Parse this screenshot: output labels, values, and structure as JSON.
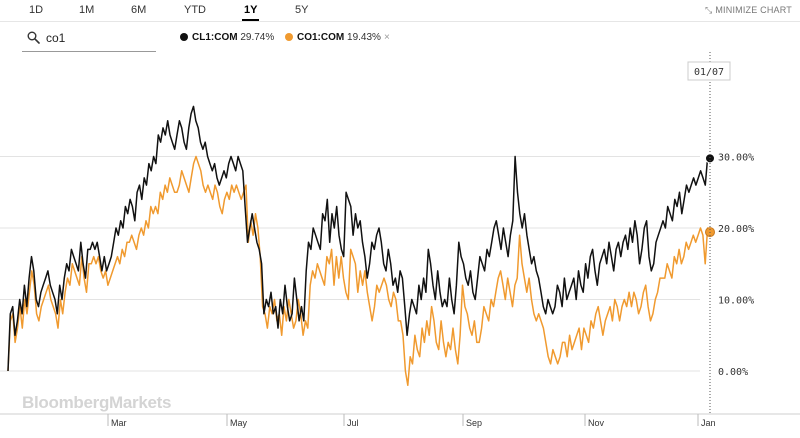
{
  "ranges": [
    {
      "label": "1D",
      "active": false
    },
    {
      "label": "1M",
      "active": false
    },
    {
      "label": "6M",
      "active": false
    },
    {
      "label": "YTD",
      "active": false
    },
    {
      "label": "1Y",
      "active": true
    },
    {
      "label": "5Y",
      "active": false
    }
  ],
  "minimize_label": "MINIMIZE CHART",
  "minimize_icon": "collapse-arrows-icon",
  "search": {
    "value": "co1",
    "placeholder": "",
    "icon": "search-icon"
  },
  "legend": [
    {
      "ticker": "CL1:COM",
      "change": "29.74%",
      "color": "#111111",
      "removable": false
    },
    {
      "ticker": "CO1:COM",
      "change": "19.43%",
      "color": "#f09a2f",
      "removable": true,
      "remove_icon": "×"
    }
  ],
  "watermark": "BloombergMarkets",
  "current_date_label": "01/07",
  "chart_data": {
    "type": "line",
    "x_labels": [
      "Mar",
      "May",
      "Jul",
      "Sep",
      "Nov",
      "Jan"
    ],
    "y_ticks": [
      "0.00%",
      "10.00%",
      "20.00%",
      "30.00%"
    ],
    "ylim": [
      -6,
      44
    ],
    "y_axis_position": "right",
    "grid": "horizontal",
    "series": [
      {
        "name": "CL1:COM",
        "color": "#111111",
        "end_value": 29.74,
        "values": [
          0,
          8,
          9,
          5,
          7,
          10,
          8,
          12,
          9,
          13,
          16,
          14,
          10,
          9,
          11,
          12,
          13,
          14,
          12,
          11,
          10,
          8,
          12,
          10,
          13,
          15,
          14,
          17,
          16,
          15,
          14,
          18,
          15,
          13,
          17,
          17,
          18,
          17,
          18,
          16,
          14,
          16,
          14,
          15,
          16,
          18,
          20,
          19,
          21,
          20,
          23,
          22,
          24,
          23,
          21,
          25,
          26,
          24,
          27,
          26,
          29,
          28,
          30,
          29,
          33,
          32,
          34,
          33,
          35,
          33,
          32,
          31,
          33,
          35,
          34,
          32,
          31,
          34,
          36,
          37,
          35,
          34,
          32,
          31,
          32,
          30,
          29,
          28,
          29,
          27,
          26,
          27,
          28,
          27,
          29,
          30,
          29,
          28,
          30,
          29,
          28,
          23,
          18,
          20,
          22,
          20,
          18,
          17,
          15,
          8,
          10,
          9,
          11,
          8,
          9,
          6,
          10,
          8,
          12,
          9,
          7,
          8,
          13,
          10,
          7,
          9,
          7,
          14,
          18,
          17,
          20,
          19,
          18,
          17,
          22,
          21,
          24,
          18,
          22,
          20,
          23,
          19,
          17,
          16,
          25,
          24,
          23,
          19,
          22,
          20,
          21,
          18,
          16,
          13,
          15,
          18,
          17,
          19,
          20,
          18,
          15,
          14,
          17,
          15,
          12,
          13,
          11,
          14,
          13,
          9,
          5,
          8,
          10,
          9,
          8,
          12,
          10,
          13,
          11,
          17,
          15,
          12,
          10,
          14,
          11,
          9,
          10,
          9,
          13,
          10,
          8,
          12,
          18,
          16,
          15,
          13,
          12,
          14,
          11,
          10,
          13,
          16,
          15,
          14,
          17,
          16,
          18,
          20,
          21,
          19,
          17,
          20,
          18,
          16,
          19,
          21,
          30,
          25,
          22,
          20,
          22,
          19,
          17,
          15,
          16,
          14,
          13,
          11,
          9,
          8,
          10,
          9,
          8,
          9,
          12,
          11,
          9,
          13,
          10,
          11,
          12,
          13,
          10,
          14,
          12,
          11,
          15,
          13,
          16,
          17,
          14,
          12,
          15,
          16,
          17,
          15,
          18,
          16,
          14,
          17,
          18,
          16,
          18,
          19,
          17,
          20,
          18,
          21,
          19,
          15,
          17,
          20,
          21,
          16,
          14,
          15,
          18,
          19,
          20,
          21,
          20,
          23,
          22,
          21,
          24,
          23,
          25,
          22,
          24,
          26,
          25,
          26,
          27,
          26,
          27,
          28,
          27,
          26,
          30,
          29.74
        ]
      },
      {
        "name": "CO1:COM",
        "color": "#f09a2f",
        "end_value": 19.43,
        "values": [
          0,
          7,
          8,
          4,
          6,
          9,
          6,
          10,
          8,
          11,
          14,
          12,
          8,
          7,
          9,
          10,
          11,
          12,
          10,
          9,
          8,
          6,
          10,
          8,
          11,
          13,
          12,
          15,
          14,
          13,
          12,
          16,
          13,
          11,
          15,
          15,
          16,
          15,
          16,
          14,
          13,
          14,
          12,
          13,
          14,
          15,
          16,
          15,
          17,
          16,
          18,
          18,
          19,
          18,
          17,
          19,
          20,
          19,
          21,
          20,
          23,
          22,
          23,
          22,
          25,
          24,
          26,
          25,
          27,
          26,
          25,
          25,
          26,
          28,
          27,
          26,
          25,
          27,
          29,
          30,
          29,
          28,
          26,
          25,
          26,
          25,
          24,
          26,
          25,
          23,
          22,
          24,
          25,
          24,
          26,
          25,
          26,
          25,
          24,
          25,
          26,
          18,
          21,
          19,
          22,
          20,
          16,
          9,
          8,
          6,
          9,
          8,
          10,
          7,
          8,
          5,
          9,
          7,
          10,
          8,
          6,
          7,
          10,
          8,
          5,
          7,
          6,
          12,
          14,
          13,
          15,
          14,
          13,
          12,
          16,
          15,
          17,
          12,
          16,
          13,
          16,
          13,
          11,
          10,
          17,
          16,
          15,
          11,
          14,
          12,
          14,
          11,
          9,
          7,
          9,
          12,
          11,
          12,
          13,
          12,
          10,
          9,
          11,
          10,
          7,
          7,
          5,
          0,
          -2,
          2,
          1,
          5,
          3,
          2,
          6,
          4,
          7,
          5,
          9,
          7,
          4,
          3,
          7,
          4,
          2,
          4,
          3,
          6,
          3,
          1,
          5,
          12,
          9,
          8,
          6,
          5,
          7,
          4,
          4,
          6,
          9,
          8,
          7,
          10,
          9,
          11,
          13,
          14,
          12,
          10,
          13,
          11,
          9,
          12,
          13,
          19,
          15,
          13,
          11,
          13,
          10,
          8,
          7,
          8,
          7,
          6,
          4,
          2,
          1,
          3,
          2,
          1,
          2,
          4,
          4,
          2,
          5,
          3,
          4,
          5,
          6,
          3,
          6,
          5,
          4,
          7,
          6,
          8,
          9,
          7,
          5,
          7,
          8,
          9,
          7,
          10,
          9,
          7,
          9,
          10,
          9,
          11,
          9,
          11,
          10,
          8,
          9,
          11,
          12,
          9,
          7,
          8,
          10,
          11,
          13,
          13,
          13,
          15,
          14,
          13,
          16,
          15,
          17,
          15,
          16,
          18,
          17,
          18,
          19,
          18,
          19,
          20,
          19,
          15,
          20,
          19.43
        ]
      }
    ]
  }
}
